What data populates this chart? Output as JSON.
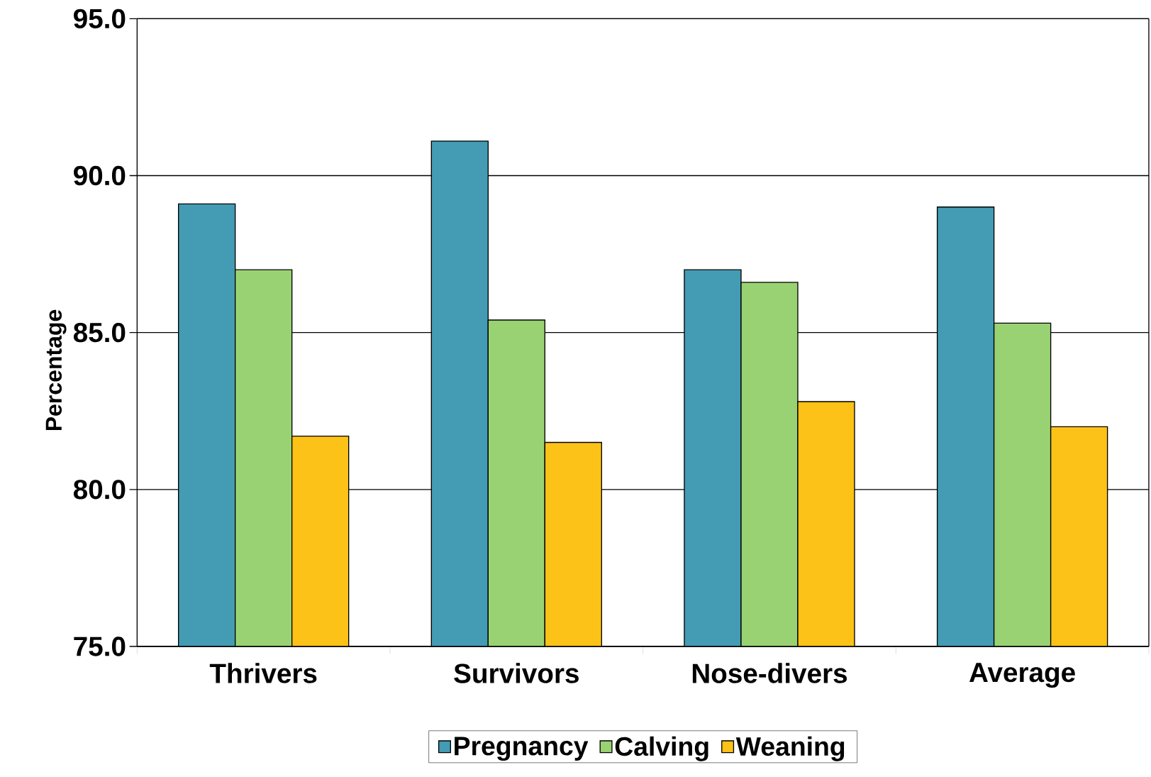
{
  "chart_data": {
    "type": "bar",
    "ylabel": "Percentage",
    "categories": [
      "Thrivers",
      "Survivors",
      "Nose-divers",
      "Average"
    ],
    "series": [
      {
        "name": "Pregnancy",
        "color": "#439cb3",
        "values": [
          89.1,
          91.1,
          87.0,
          89.0
        ]
      },
      {
        "name": "Calving",
        "color": "#99d272",
        "values": [
          87.0,
          85.4,
          86.6,
          85.3
        ]
      },
      {
        "name": "Weaning",
        "color": "#fdc217",
        "values": [
          81.7,
          81.5,
          82.8,
          82.0
        ]
      }
    ],
    "ylim": [
      75,
      95
    ],
    "yticks": [
      {
        "value": 75,
        "label": "75.0"
      },
      {
        "value": 80,
        "label": "80.0"
      },
      {
        "value": 85,
        "label": "85.0"
      },
      {
        "value": 90,
        "label": "90.0"
      },
      {
        "value": 95,
        "label": "95.0"
      }
    ],
    "grid": "y",
    "legend": "bottom"
  }
}
